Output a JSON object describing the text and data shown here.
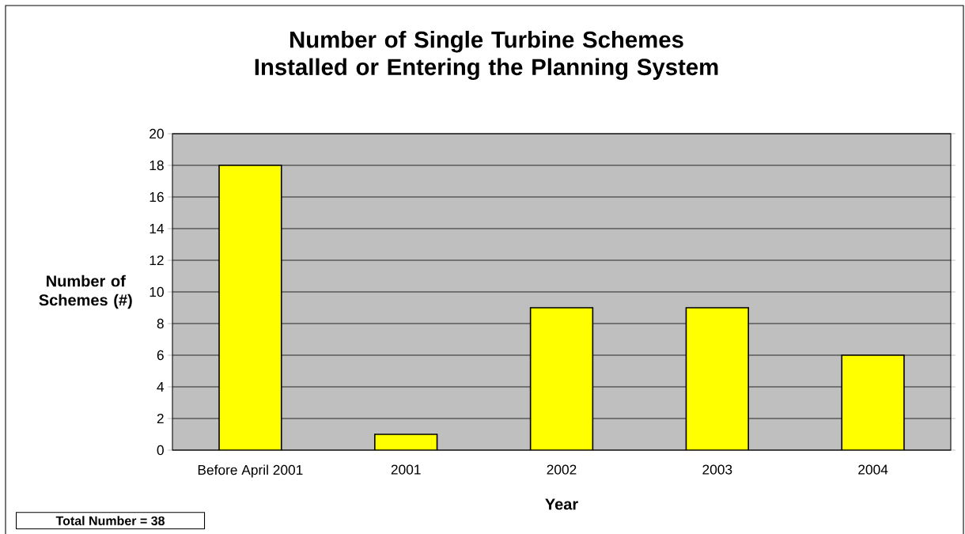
{
  "chart_data": {
    "type": "bar",
    "title": "Number of Single Turbine Schemes Installed or Entering the Planning System",
    "xlabel": "Year",
    "ylabel": "Number of Schemes (#)",
    "categories": [
      "Before April 2001",
      "2001",
      "2002",
      "2003",
      "2004"
    ],
    "values": [
      18,
      1,
      9,
      9,
      6
    ],
    "color": "#ffff00",
    "ylim": [
      0,
      20
    ],
    "yticks": [
      0,
      2,
      4,
      6,
      8,
      10,
      12,
      14,
      16,
      18,
      20
    ],
    "grid": "y",
    "annotations": [
      "Total Number = 38"
    ]
  }
}
